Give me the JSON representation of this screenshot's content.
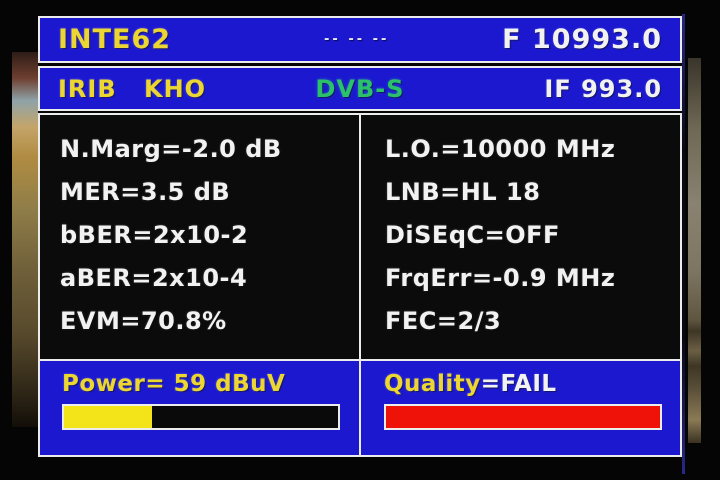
{
  "colors": {
    "panel_blue": "#1b18cf",
    "border_white": "#ececec",
    "accent_yellow": "#ecd632",
    "text_white": "#f2f2f2",
    "dvb_green": "#2bc16b",
    "bar_yellow": "#f2e418",
    "bar_red": "#ee1208"
  },
  "top_bar": {
    "name": "INTE62",
    "separator": "-- -- --",
    "frequency": "F 10993.0"
  },
  "info_bar": {
    "provider": "IRIB KHO",
    "standard": "DVB-S",
    "if_frequency": "IF 993.0"
  },
  "measurements": {
    "left": [
      "N.Marg=-2.0 dB",
      "MER=3.5 dB",
      "bBER=2x10-2",
      "aBER=2x10-4",
      "EVM=70.8%"
    ],
    "right": [
      "L.O.=10000 MHz",
      "LNB=HL 18",
      "DiSEqC=OFF",
      "FrqErr=-0.9 MHz",
      "FEC=2/3"
    ]
  },
  "power": {
    "label": "Power= 59 dBuV",
    "percent": 32
  },
  "quality": {
    "label": "Quality",
    "value": "=FAIL",
    "percent": 100
  }
}
